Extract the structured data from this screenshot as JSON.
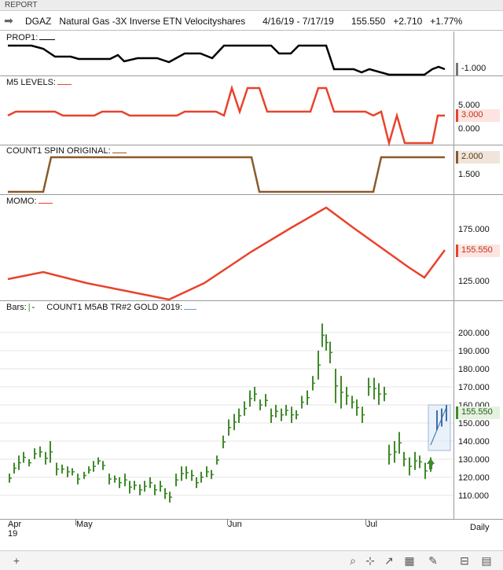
{
  "window": {
    "title": "REPORT"
  },
  "header": {
    "symbol": "DGAZ",
    "name": "Natural Gas -3X Inverse ETN Velocityshares",
    "range": "4/16/19 - 7/17/19",
    "last": "155.550",
    "change": "+2.710",
    "change_pct": "+1.77%"
  },
  "panels": {
    "prop1": {
      "label": "PROP1:",
      "value": "-1.000"
    },
    "m5": {
      "label": "M5 LEVELS:",
      "ticks": [
        "5.000",
        "0.000"
      ],
      "value": "3.000"
    },
    "count1": {
      "label": "COUNT1 SPIN ORIGINAL:",
      "ticks": [
        "1.500"
      ],
      "value": "2.000"
    },
    "momo": {
      "label": "MOMO:",
      "ticks": [
        "175.000",
        "125.000"
      ],
      "value": "155.550"
    },
    "bars": {
      "label": "Bars:",
      "study": "COUNT1 M5AB TR#2 GOLD 2019:",
      "ticks": [
        "200.000",
        "190.000",
        "180.000",
        "170.000",
        "160.000",
        "150.000",
        "140.000",
        "130.000",
        "120.000",
        "110.000"
      ],
      "value": "155.550"
    }
  },
  "xaxis": {
    "labels": [
      "Apr",
      "May",
      "Jun",
      "Jul"
    ],
    "year": "19",
    "interval": "Daily"
  },
  "colors": {
    "prop1": "#000000",
    "m5": "#e8432b",
    "count1": "#8a5a2b",
    "momo": "#e8432b",
    "bars": "#3f8a2a",
    "proj": "#6b9bd1"
  },
  "toolbar": {
    "icons": [
      "plus-icon",
      "search-icon",
      "crosshair-icon",
      "line-chart-icon",
      "calendar-icon",
      "brush-icon",
      "book-icon",
      "grid-icon"
    ]
  }
}
